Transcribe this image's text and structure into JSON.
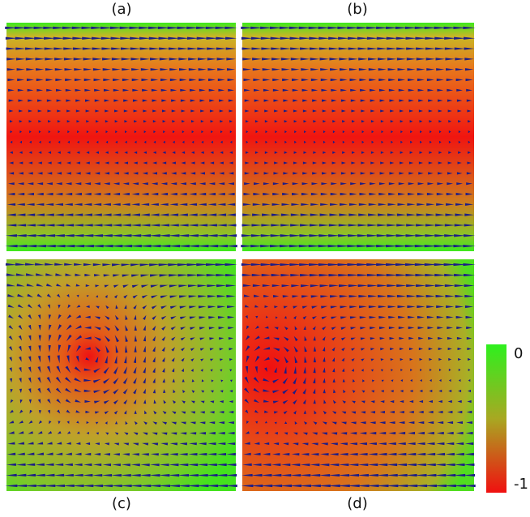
{
  "panels": [
    {
      "label": "(a)"
    },
    {
      "label": "(b)"
    },
    {
      "label": "(c)"
    },
    {
      "label": "(d)"
    }
  ],
  "colorbar": {
    "top_label": "0",
    "bottom_label": "-1"
  }
}
